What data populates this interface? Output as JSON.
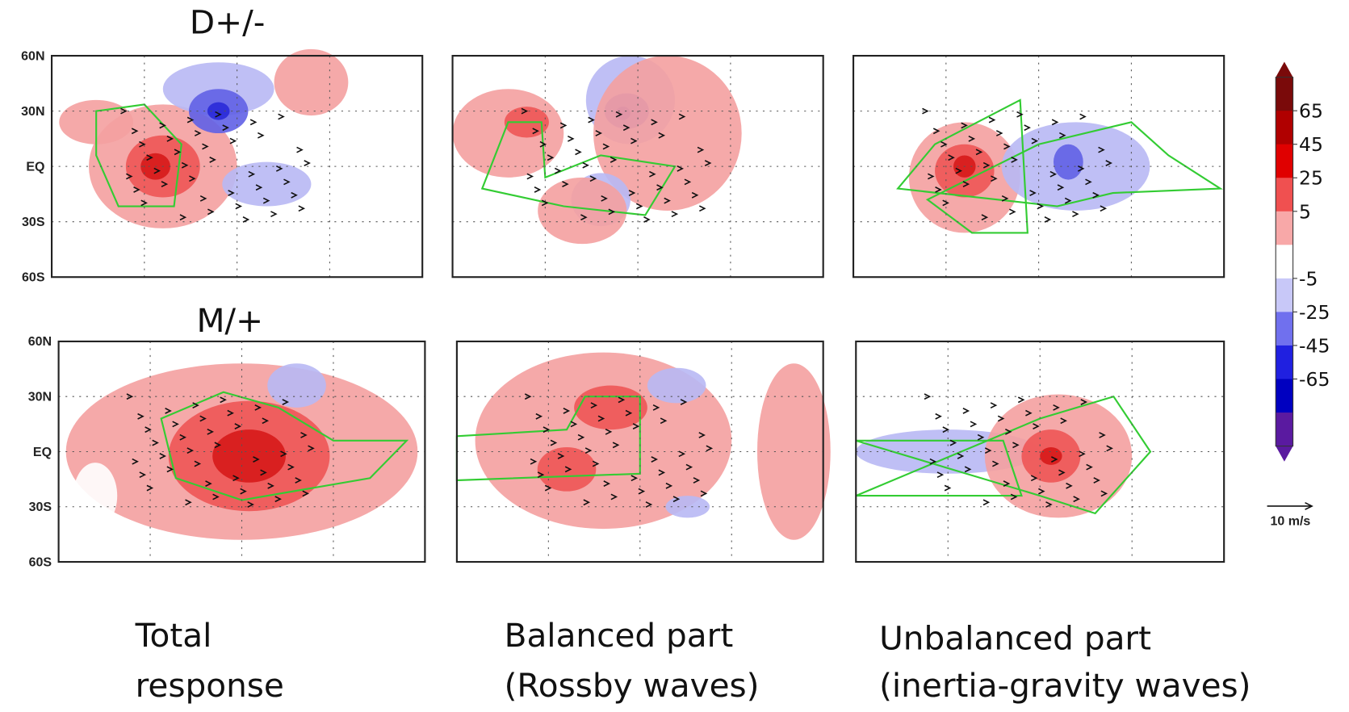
{
  "rows": [
    {
      "label": "D+/-",
      "lat_labels": [
        "60N",
        "30N",
        "EQ",
        "30S",
        "60S"
      ]
    },
    {
      "label": "M/+",
      "lat_labels": [
        "60N",
        "30N",
        "EQ",
        "30S",
        "60S"
      ]
    }
  ],
  "captions": [
    [
      "Total",
      "response"
    ],
    [
      "Balanced part",
      "(Rossby waves)"
    ],
    [
      "Unbalanced part",
      "(inertia-gravity waves)"
    ]
  ],
  "colorbar": {
    "ticks": [
      65,
      45,
      25,
      5,
      -5,
      -25,
      -45,
      -65
    ]
  },
  "vector_key": "10 m/s"
}
